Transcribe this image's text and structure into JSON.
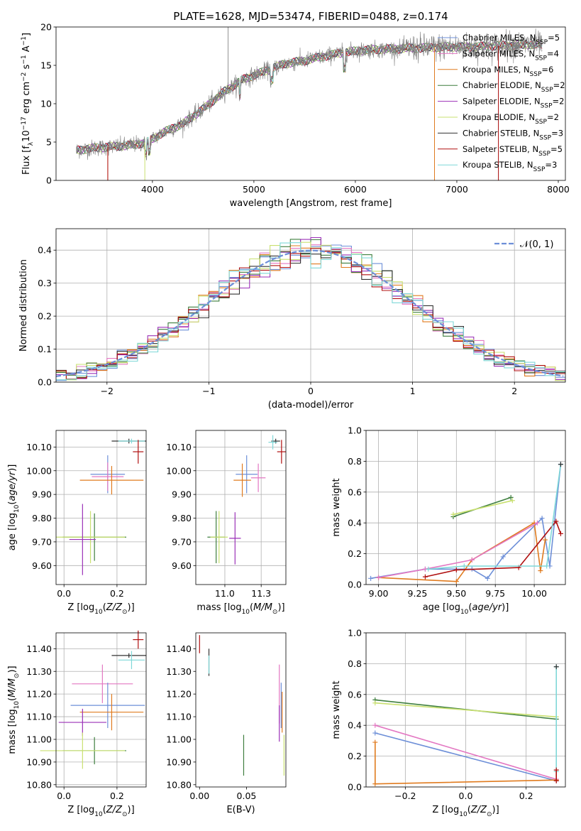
{
  "chart_data": [
    {
      "id": "spectrum",
      "type": "line",
      "title": "PLATE=1628, MJD=53474, FIBERID=0488, z=0.174",
      "xlabel": "wavelength [Angstrom, rest frame]",
      "ylabel": "Flux [f_λ10^-17 erg cm^-2 s^-1 A^-1]",
      "xlim": [
        3050,
        8070
      ],
      "ylim": [
        0,
        20
      ],
      "xticks": [
        4000,
        5000,
        6000,
        7000,
        8000
      ],
      "yticks": [
        0,
        5,
        10,
        15,
        20
      ],
      "grid": false,
      "legend_position": "top-right",
      "data_color": "#7f7f7f",
      "data_range": [
        3250,
        7840
      ],
      "spikes": [
        [
          4745,
          20
        ],
        [
          6780,
          0
        ],
        [
          7410,
          0
        ]
      ],
      "series": [
        {
          "name": "Chabrier MILES, N_SSP=5",
          "color": "#6d8fd8"
        },
        {
          "name": "Salpeter MILES, N_SSP=4",
          "color": "#e377c2"
        },
        {
          "name": "Kroupa MILES, N_SSP=6",
          "color": "#e07b1f"
        },
        {
          "name": "Chabrier ELODIE, N_SSP=2",
          "color": "#3f7f3f"
        },
        {
          "name": "Salpeter ELODIE, N_SSP=2",
          "color": "#9b30b8"
        },
        {
          "name": "Kroupa ELODIE, N_SSP=2",
          "color": "#c9e070"
        },
        {
          "name": "Chabrier STELIB, N_SSP=3",
          "color": "#333333"
        },
        {
          "name": "Salpeter STELIB, N_SSP=5",
          "color": "#b01010"
        },
        {
          "name": "Kroupa STELIB, N_SSP=3",
          "color": "#7fd8d8"
        }
      ],
      "continuum": [
        [
          3250,
          3.9
        ],
        [
          3400,
          4.2
        ],
        [
          3600,
          4.4
        ],
        [
          3800,
          4.6
        ],
        [
          3950,
          5.0
        ],
        [
          4100,
          6.2
        ],
        [
          4300,
          7.4
        ],
        [
          4500,
          9.3
        ],
        [
          4700,
          11.5
        ],
        [
          4900,
          13.2
        ],
        [
          5100,
          14.2
        ],
        [
          5300,
          15.2
        ],
        [
          5500,
          15.6
        ],
        [
          5700,
          16.2
        ],
        [
          5900,
          16.7
        ],
        [
          6100,
          17.0
        ],
        [
          6300,
          17.1
        ],
        [
          6500,
          17.2
        ],
        [
          6700,
          17.3
        ],
        [
          6900,
          17.4
        ],
        [
          7100,
          17.4
        ],
        [
          7300,
          17.5
        ],
        [
          7500,
          17.6
        ],
        [
          7700,
          17.7
        ],
        [
          7840,
          17.7
        ]
      ]
    },
    {
      "id": "residuals",
      "type": "step",
      "xlabel": "(data-model)/error",
      "ylabel": "Normed distribution",
      "xlim": [
        -2.5,
        2.5
      ],
      "ylim": [
        0,
        0.465
      ],
      "xticks": [
        -2,
        -1,
        0,
        1,
        2
      ],
      "yticks": [
        0.0,
        0.1,
        0.2,
        0.3,
        0.4
      ],
      "grid": true,
      "legend_position": "top-right",
      "legend_label": "𝒩(0, 1)",
      "gaussian_color": "#6d8fd8",
      "bin_width": 0.1,
      "series_colors": [
        "#6d8fd8",
        "#e377c2",
        "#e07b1f",
        "#3f7f3f",
        "#9b30b8",
        "#c9e070",
        "#333333",
        "#b01010",
        "#7fd8d8"
      ]
    },
    {
      "id": "age_vs_Z",
      "type": "errorbar",
      "xlabel": "Z [log10(Z/Z⊙)]",
      "ylabel": "age  [log10(age/yr)]",
      "xlim": [
        -0.03,
        0.31
      ],
      "ylim": [
        9.52,
        10.17
      ],
      "xticks": [
        0.0,
        0.2
      ],
      "yticks": [
        9.6,
        9.7,
        9.8,
        9.9,
        10.0,
        10.1
      ],
      "grid": true,
      "points": [
        {
          "color": "#333333",
          "x": 0.245,
          "xerr": 0.065,
          "y": 10.125,
          "yerr": 0.01
        },
        {
          "color": "#7fd8d8",
          "x": 0.255,
          "xerr": 0.05,
          "y": 10.125,
          "yerr": 0.01
        },
        {
          "color": "#b01010",
          "x": 0.28,
          "xerr": 0.02,
          "y": 10.08,
          "yerr": 0.05
        },
        {
          "color": "#6d8fd8",
          "x": 0.165,
          "xerr": 0.065,
          "y": 9.985,
          "yerr": 0.08
        },
        {
          "color": "#e377c2",
          "x": 0.165,
          "xerr": 0.06,
          "y": 9.975,
          "yerr": 0.06
        },
        {
          "color": "#e07b1f",
          "x": 0.18,
          "xerr": 0.12,
          "y": 9.96,
          "yerr": 0.06
        },
        {
          "color": "#3f7f3f",
          "x": 0.115,
          "xerr": 0.12,
          "y": 9.72,
          "yerr": 0.1
        },
        {
          "color": "#c9e070",
          "x": 0.1,
          "xerr": 0.13,
          "y": 9.72,
          "yerr": 0.11
        },
        {
          "color": "#9b30b8",
          "x": 0.07,
          "xerr": 0.05,
          "y": 9.71,
          "yerr": 0.15
        }
      ]
    },
    {
      "id": "age_vs_mass",
      "type": "errorbar",
      "xlabel": "mass [log10(M/M⊙)]",
      "ylabel": "",
      "xlim": [
        10.8,
        11.42
      ],
      "ylim": [
        9.52,
        10.17
      ],
      "xticks": [
        11.0,
        11.25
      ],
      "yticks": [
        9.6,
        9.7,
        9.8,
        9.9,
        10.0,
        10.1
      ],
      "grid": true,
      "points": [
        {
          "color": "#333333",
          "x": 11.35,
          "xerr": 0.03,
          "y": 10.125,
          "yerr": 0.01
        },
        {
          "color": "#7fd8d8",
          "x": 11.33,
          "xerr": 0.03,
          "y": 10.12,
          "yerr": 0.03
        },
        {
          "color": "#b01010",
          "x": 11.39,
          "xerr": 0.03,
          "y": 10.08,
          "yerr": 0.05
        },
        {
          "color": "#6d8fd8",
          "x": 11.15,
          "xerr": 0.075,
          "y": 9.985,
          "yerr": 0.08
        },
        {
          "color": "#e377c2",
          "x": 11.23,
          "xerr": 0.05,
          "y": 9.97,
          "yerr": 0.06
        },
        {
          "color": "#e07b1f",
          "x": 11.12,
          "xerr": 0.06,
          "y": 9.96,
          "yerr": 0.07
        },
        {
          "color": "#3f7f3f",
          "x": 10.94,
          "xerr": 0.06,
          "y": 9.72,
          "yerr": 0.11
        },
        {
          "color": "#c9e070",
          "x": 10.96,
          "xerr": 0.06,
          "y": 9.72,
          "yerr": 0.11
        },
        {
          "color": "#9b30b8",
          "x": 11.07,
          "xerr": 0.04,
          "y": 9.715,
          "yerr": 0.11
        }
      ]
    },
    {
      "id": "massweight_vs_age",
      "type": "line",
      "xlabel": "age  [log10(age/yr)]",
      "ylabel": "mass weight",
      "xlim": [
        8.92,
        10.2
      ],
      "ylim": [
        0,
        1.0
      ],
      "xticks": [
        9.0,
        9.25,
        9.5,
        9.75,
        10.0
      ],
      "yticks": [
        0.0,
        0.2,
        0.4,
        0.6,
        0.8,
        1.0
      ],
      "grid": true,
      "series": [
        {
          "color": "#6d8fd8",
          "x": [
            8.95,
            9.3,
            9.6,
            9.7,
            9.8,
            10.05,
            10.1,
            10.17
          ],
          "y": [
            0.04,
            0.1,
            0.1,
            0.04,
            0.18,
            0.43,
            0.12,
            0.78
          ]
        },
        {
          "color": "#e07b1f",
          "x": [
            9.0,
            9.5,
            9.6,
            10.0,
            10.04,
            10.07
          ],
          "y": [
            0.045,
            0.02,
            0.16,
            0.4,
            0.09,
            0.29
          ]
        },
        {
          "color": "#e377c2",
          "x": [
            9.0,
            9.3,
            9.6,
            10.02
          ],
          "y": [
            0.045,
            0.1,
            0.16,
            0.4
          ]
        },
        {
          "color": "#3f7f3f",
          "x": [
            9.48,
            9.85
          ],
          "y": [
            0.44,
            0.565
          ]
        },
        {
          "color": "#c9e070",
          "x": [
            9.48,
            9.86
          ],
          "y": [
            0.455,
            0.545
          ]
        },
        {
          "color": "#b01010",
          "x": [
            9.3,
            9.5,
            9.9,
            10.14,
            10.17
          ],
          "y": [
            0.05,
            0.095,
            0.11,
            0.41,
            0.33
          ]
        },
        {
          "color": "#7fd8d8",
          "x": [
            9.32,
            9.55,
            10.08,
            10.17
          ],
          "y": [
            0.1,
            0.12,
            0.12,
            0.78
          ]
        },
        {
          "color": "#333333",
          "x": [
            10.17
          ],
          "y": [
            0.78
          ]
        }
      ]
    },
    {
      "id": "mass_vs_Z",
      "type": "errorbar",
      "xlabel": "Z [log10(Z/Z⊙)]",
      "ylabel": "mass [log10(M/M⊙)]",
      "xlim": [
        -0.03,
        0.31
      ],
      "ylim": [
        10.79,
        11.47
      ],
      "xticks": [
        0.0,
        0.2
      ],
      "yticks": [
        10.8,
        10.9,
        11.0,
        11.1,
        11.2,
        11.3,
        11.4
      ],
      "grid": true,
      "points": [
        {
          "color": "#b01010",
          "x": 0.28,
          "xerr": 0.02,
          "y": 11.44,
          "yerr": 0.04
        },
        {
          "color": "#333333",
          "x": 0.245,
          "xerr": 0.065,
          "y": 11.37,
          "yerr": 0.01
        },
        {
          "color": "#7fd8d8",
          "x": 0.255,
          "xerr": 0.05,
          "y": 11.35,
          "yerr": 0.04
        },
        {
          "color": "#e377c2",
          "x": 0.145,
          "xerr": 0.115,
          "y": 11.245,
          "yerr": 0.085
        },
        {
          "color": "#6d8fd8",
          "x": 0.165,
          "xerr": 0.14,
          "y": 11.15,
          "yerr": 0.1
        },
        {
          "color": "#e07b1f",
          "x": 0.18,
          "xerr": 0.12,
          "y": 11.12,
          "yerr": 0.08
        },
        {
          "color": "#9b30b8",
          "x": 0.07,
          "xerr": 0.09,
          "y": 11.075,
          "yerr": 0.06
        },
        {
          "color": "#3f7f3f",
          "x": 0.115,
          "xerr": 0.12,
          "y": 10.95,
          "yerr": 0.06
        },
        {
          "color": "#c9e070",
          "x": 0.07,
          "xerr": 0.16,
          "y": 10.95,
          "yerr": 0.08
        }
      ]
    },
    {
      "id": "mass_vs_EBV",
      "type": "errorbar",
      "xlabel": "E(B-V)",
      "ylabel": "",
      "xlim": [
        -0.004,
        0.092
      ],
      "ylim": [
        10.79,
        11.47
      ],
      "xticks": [
        0.0,
        0.05
      ],
      "yticks": [
        10.8,
        10.9,
        11.0,
        11.1,
        11.2,
        11.3,
        11.4
      ],
      "grid": false,
      "points": [
        {
          "color": "#b01010",
          "x": 0.0,
          "xerr": 0,
          "y": 11.42,
          "yerr": 0.04
        },
        {
          "color": "#333333",
          "x": 0.01,
          "xerr": 0,
          "y": 11.34,
          "yerr": 0.06
        },
        {
          "color": "#7fd8d8",
          "x": 0.01,
          "xerr": 0,
          "y": 11.33,
          "yerr": 0.04
        },
        {
          "color": "#e377c2",
          "x": 0.085,
          "xerr": 0,
          "y": 11.2,
          "yerr": 0.13
        },
        {
          "color": "#6d8fd8",
          "x": 0.087,
          "xerr": 0,
          "y": 11.15,
          "yerr": 0.1
        },
        {
          "color": "#e07b1f",
          "x": 0.088,
          "xerr": 0,
          "y": 11.12,
          "yerr": 0.09
        },
        {
          "color": "#9b30b8",
          "x": 0.085,
          "xerr": 0,
          "y": 11.07,
          "yerr": 0.08
        },
        {
          "color": "#3f7f3f",
          "x": 0.047,
          "xerr": 0,
          "y": 10.93,
          "yerr": 0.09
        },
        {
          "color": "#c9e070",
          "x": 0.09,
          "xerr": 0,
          "y": 10.93,
          "yerr": 0.09
        }
      ]
    },
    {
      "id": "massweight_vs_Z",
      "type": "line",
      "xlabel": "Z [log10(Z/Z⊙)]",
      "ylabel": "mass weight",
      "xlim": [
        -0.33,
        0.33
      ],
      "ylim": [
        0,
        1.0
      ],
      "xticks": [
        -0.2,
        0.0,
        0.2
      ],
      "yticks": [
        0.0,
        0.2,
        0.4,
        0.6,
        0.8,
        1.0
      ],
      "grid": true,
      "series": [
        {
          "color": "#3f7f3f",
          "x": [
            -0.3,
            0.3
          ],
          "y": [
            0.565,
            0.44
          ]
        },
        {
          "color": "#c9e070",
          "x": [
            -0.3,
            0.3
          ],
          "y": [
            0.545,
            0.455
          ]
        },
        {
          "color": "#e377c2",
          "x": [
            -0.3,
            0.3
          ],
          "y": [
            0.4,
            0.05
          ]
        },
        {
          "color": "#6d8fd8",
          "x": [
            -0.3,
            0.3
          ],
          "y": [
            0.35,
            0.04
          ]
        },
        {
          "color": "#e07b1f",
          "x": [
            -0.3,
            -0.3,
            0.3
          ],
          "y": [
            0.29,
            0.02,
            0.045
          ]
        },
        {
          "color": "#7fd8d8",
          "x": [
            0.3,
            0.3
          ],
          "y": [
            0.1,
            0.78
          ]
        },
        {
          "color": "#b01010",
          "x": [
            0.3,
            0.3
          ],
          "y": [
            0.04,
            0.11
          ]
        },
        {
          "color": "#333333",
          "x": [
            0.3
          ],
          "y": [
            0.78
          ]
        }
      ]
    }
  ]
}
